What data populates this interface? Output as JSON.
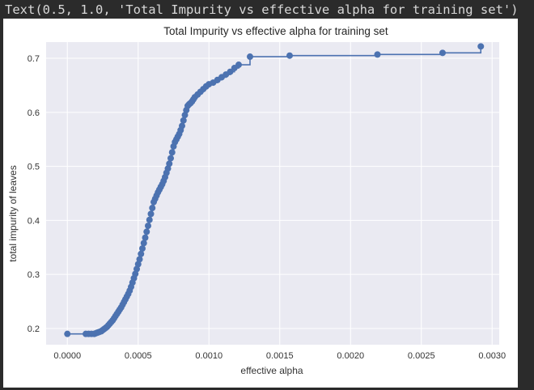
{
  "output_text": "Text(0.5, 1.0, 'Total Impurity vs effective alpha for training set')",
  "colors": {
    "plot_background": "#eaeaf2",
    "grid": "#ffffff",
    "series": "#4c72b0",
    "page_background": "#2b2b2b",
    "figure_background": "#ffffff"
  },
  "chart_data": {
    "type": "line",
    "title": "Total Impurity vs effective alpha for training set",
    "xlabel": "effective alpha",
    "ylabel": "total impurity of leaves",
    "xlim": [
      -0.00015,
      0.00305
    ],
    "ylim": [
      0.17,
      0.73
    ],
    "xticks": [
      0.0,
      0.0005,
      0.001,
      0.0015,
      0.002,
      0.0025,
      0.003
    ],
    "xtick_labels": [
      "0.0000",
      "0.0005",
      "0.0010",
      "0.0015",
      "0.0020",
      "0.0025",
      "0.0030"
    ],
    "yticks": [
      0.2,
      0.3,
      0.4,
      0.5,
      0.6,
      0.7
    ],
    "ytick_labels": [
      "0.2",
      "0.3",
      "0.4",
      "0.5",
      "0.6",
      "0.7"
    ],
    "grid": true,
    "marker": "circle",
    "drawstyle": "steps-post",
    "series": [
      {
        "x": [
          0.0,
          0.00013,
          0.00015,
          0.00017,
          0.00019,
          0.0002,
          0.00021,
          0.00022,
          0.00023,
          0.00024,
          0.00025,
          0.00026,
          0.00027,
          0.00028,
          0.00029,
          0.0003,
          0.00031,
          0.00032,
          0.00033,
          0.00034,
          0.00035,
          0.00036,
          0.00037,
          0.00038,
          0.00039,
          0.0004,
          0.00041,
          0.00042,
          0.00043,
          0.00044,
          0.00045,
          0.00046,
          0.00047,
          0.00048,
          0.00049,
          0.0005,
          0.00051,
          0.00052,
          0.00053,
          0.00054,
          0.00055,
          0.00056,
          0.00057,
          0.00058,
          0.00059,
          0.0006,
          0.00061,
          0.00062,
          0.00063,
          0.00064,
          0.00065,
          0.00066,
          0.00067,
          0.00068,
          0.00069,
          0.0007,
          0.00071,
          0.00072,
          0.00073,
          0.00074,
          0.00075,
          0.00076,
          0.00077,
          0.00078,
          0.00079,
          0.0008,
          0.00081,
          0.00082,
          0.00083,
          0.00084,
          0.00085,
          0.00086,
          0.00087,
          0.00088,
          0.00089,
          0.0009,
          0.00092,
          0.00094,
          0.00096,
          0.00098,
          0.001,
          0.00103,
          0.00106,
          0.00109,
          0.00112,
          0.00115,
          0.00118,
          0.00121,
          0.00129,
          0.00157,
          0.00219,
          0.00265,
          0.00292
        ],
        "y": [
          0.19,
          0.19,
          0.19,
          0.19,
          0.19,
          0.191,
          0.192,
          0.193,
          0.194,
          0.195,
          0.197,
          0.199,
          0.201,
          0.203,
          0.206,
          0.209,
          0.212,
          0.215,
          0.219,
          0.223,
          0.227,
          0.231,
          0.235,
          0.239,
          0.244,
          0.249,
          0.254,
          0.259,
          0.264,
          0.27,
          0.277,
          0.285,
          0.293,
          0.301,
          0.31,
          0.319,
          0.328,
          0.338,
          0.348,
          0.358,
          0.368,
          0.379,
          0.39,
          0.401,
          0.412,
          0.423,
          0.434,
          0.44,
          0.446,
          0.452,
          0.457,
          0.462,
          0.467,
          0.473,
          0.48,
          0.488,
          0.496,
          0.505,
          0.515,
          0.526,
          0.537,
          0.545,
          0.55,
          0.555,
          0.56,
          0.567,
          0.575,
          0.585,
          0.595,
          0.604,
          0.612,
          0.615,
          0.617,
          0.62,
          0.624,
          0.628,
          0.633,
          0.638,
          0.643,
          0.648,
          0.652,
          0.655,
          0.66,
          0.665,
          0.67,
          0.675,
          0.682,
          0.688,
          0.703,
          0.705,
          0.707,
          0.71,
          0.722
        ]
      }
    ]
  }
}
